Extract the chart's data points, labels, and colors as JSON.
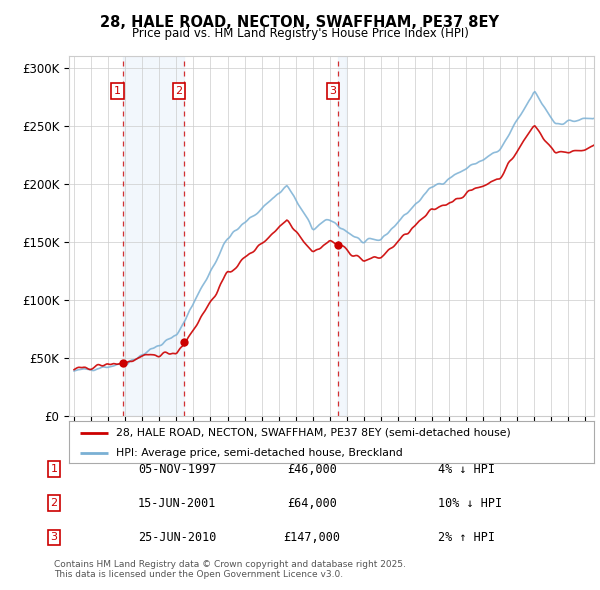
{
  "title": "28, HALE ROAD, NECTON, SWAFFHAM, PE37 8EY",
  "subtitle": "Price paid vs. HM Land Registry's House Price Index (HPI)",
  "ylabel_ticks": [
    "£0",
    "£50K",
    "£100K",
    "£150K",
    "£200K",
    "£250K",
    "£300K"
  ],
  "ytick_values": [
    0,
    50000,
    100000,
    150000,
    200000,
    250000,
    300000
  ],
  "ylim": [
    0,
    310000
  ],
  "xlim_start": 1994.7,
  "xlim_end": 2025.5,
  "sale_dates": [
    1997.843,
    2001.456,
    2010.479
  ],
  "sale_prices": [
    46000,
    64000,
    147000
  ],
  "sale_labels": [
    "1",
    "2",
    "3"
  ],
  "sale_info": [
    {
      "num": "1",
      "date": "05-NOV-1997",
      "price": "£46,000",
      "diff": "4% ↓ HPI"
    },
    {
      "num": "2",
      "date": "15-JUN-2001",
      "price": "£64,000",
      "diff": "10% ↓ HPI"
    },
    {
      "num": "3",
      "date": "25-JUN-2010",
      "price": "£147,000",
      "diff": "2% ↑ HPI"
    }
  ],
  "legend_line1": "28, HALE ROAD, NECTON, SWAFFHAM, PE37 8EY (semi-detached house)",
  "legend_line2": "HPI: Average price, semi-detached house, Breckland",
  "footer": "Contains HM Land Registry data © Crown copyright and database right 2025.\nThis data is licensed under the Open Government Licence v3.0.",
  "line_color": "#cc0000",
  "hpi_color": "#7ab0d4",
  "shade_color": "#ddeeff",
  "background_color": "#ffffff",
  "plot_bg_color": "#ffffff",
  "grid_color": "#cccccc"
}
